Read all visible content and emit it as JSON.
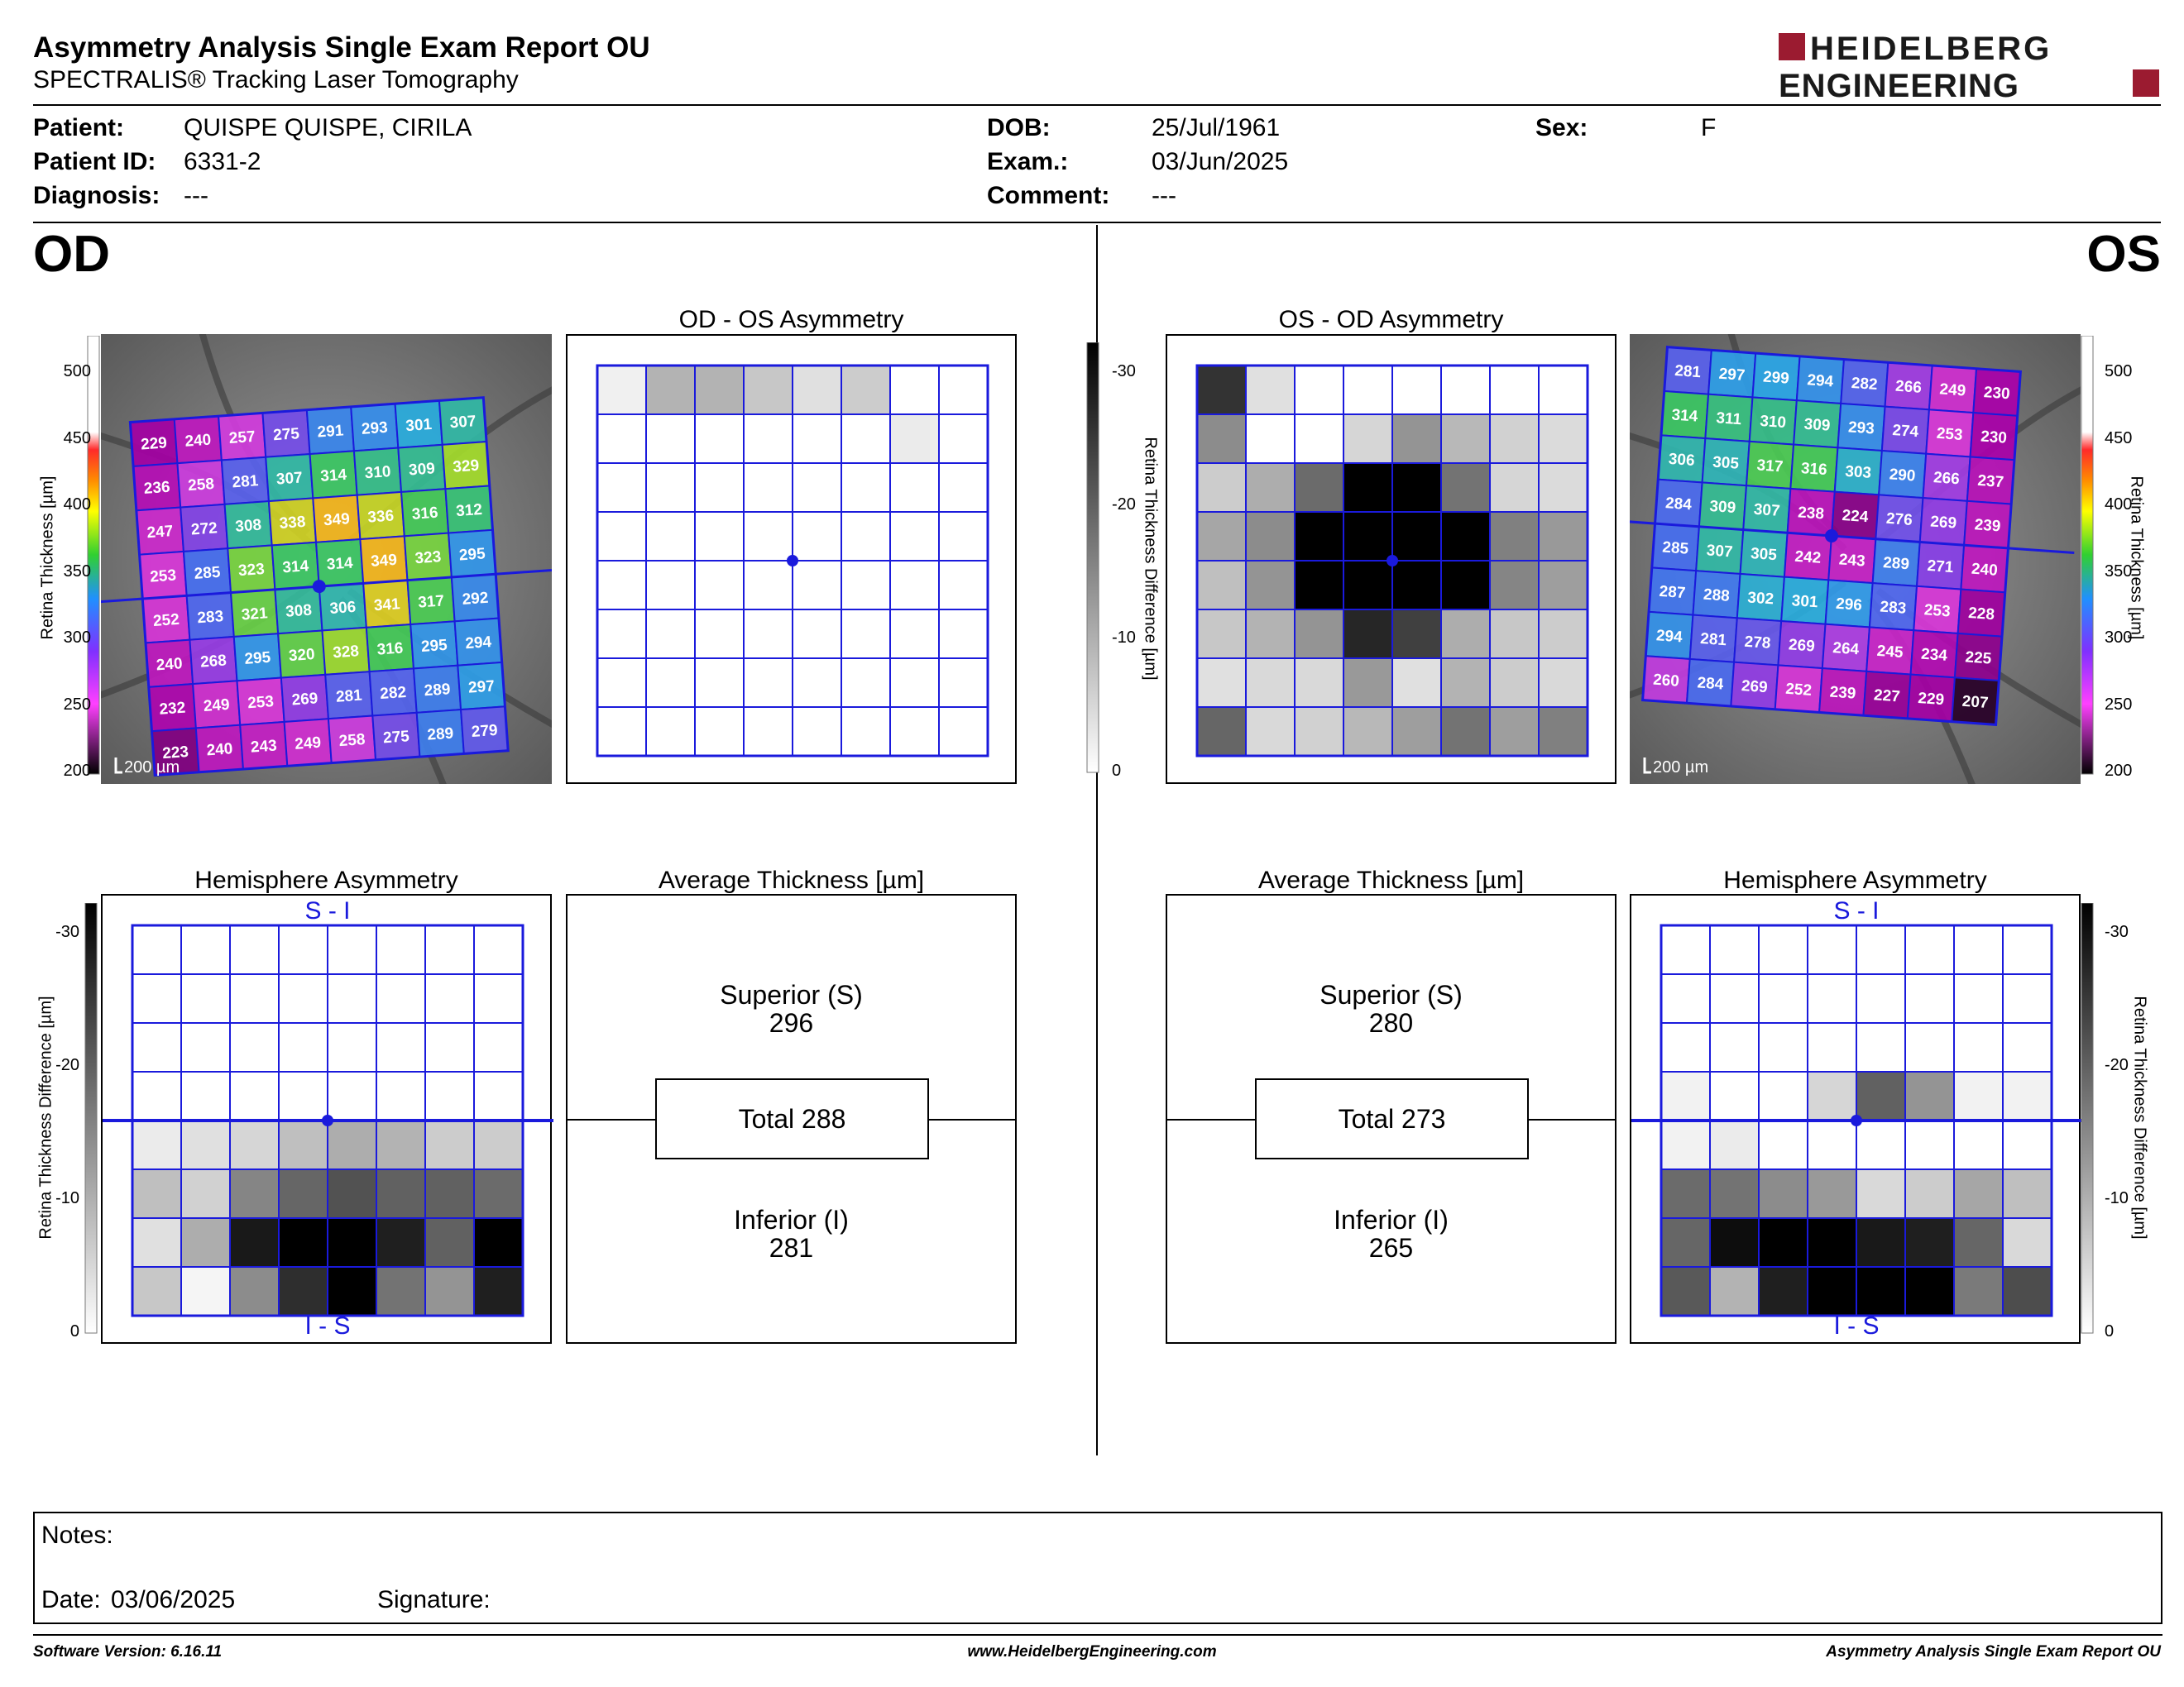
{
  "header": {
    "title": "Asymmetry Analysis Single Exam Report OU",
    "subtitle": "SPECTRALIS® Tracking Laser Tomography",
    "logo_line1": "HEIDELBERG",
    "logo_line2": "ENGINEERING"
  },
  "patient": {
    "patient_label": "Patient:",
    "patient": "QUISPE QUISPE, CIRILA",
    "patient_id_label": "Patient ID:",
    "patient_id": "6331-2",
    "diagnosis_label": "Diagnosis:",
    "diagnosis": "---",
    "dob_label": "DOB:",
    "dob": "25/Jul/1961",
    "exam_label": "Exam.:",
    "exam": "03/Jun/2025",
    "comment_label": "Comment:",
    "comment": "---",
    "sex_label": "Sex:",
    "sex": "F"
  },
  "eyes": {
    "left": "OD",
    "right": "OS"
  },
  "panel_titles": {
    "od_os": "OD - OS Asymmetry",
    "os_od": "OS - OD Asymmetry",
    "hemi": "Hemisphere Asymmetry",
    "avg": "Average Thickness [µm]"
  },
  "scales": {
    "thickness_label": "Retina Thickness [µm]",
    "thickness_ticks": [
      "500",
      "450",
      "400",
      "350",
      "300",
      "250",
      "200"
    ],
    "diff_label": "Retina Thickness Difference [µm]",
    "diff_ticks": [
      "-30",
      "-20",
      "-10",
      "0"
    ],
    "scale_bar": "200 µm"
  },
  "hemi_labels": {
    "top": "S - I",
    "bottom": "I - S"
  },
  "od": {
    "thickness_grid": [
      [
        "229",
        "240",
        "257",
        "275",
        "291",
        "293",
        "301",
        "307"
      ],
      [
        "236",
        "258",
        "281",
        "307",
        "314",
        "310",
        "309",
        "329"
      ],
      [
        "247",
        "272",
        "308",
        "338",
        "349",
        "336",
        "316",
        "312"
      ],
      [
        "253",
        "285",
        "323",
        "314",
        "314",
        "349",
        "323",
        "295"
      ],
      [
        "252",
        "283",
        "321",
        "308",
        "306",
        "341",
        "317",
        "292"
      ],
      [
        "240",
        "268",
        "295",
        "320",
        "328",
        "316",
        "295",
        "294"
      ],
      [
        "232",
        "249",
        "253",
        "269",
        "281",
        "282",
        "289",
        "297"
      ],
      [
        "223",
        "240",
        "243",
        "249",
        "258",
        "275",
        "289",
        "279"
      ]
    ],
    "asym_grid": [
      [
        0.06,
        0.3,
        0.3,
        0.22,
        0.12,
        0.2,
        0,
        0
      ],
      [
        0,
        0,
        0,
        0,
        0,
        0,
        0.08,
        0
      ],
      [
        0,
        0,
        0,
        0,
        0,
        0,
        0,
        0
      ],
      [
        0,
        0,
        0,
        0,
        0,
        0,
        0,
        0
      ],
      [
        0,
        0,
        0,
        0,
        0,
        0,
        0,
        0
      ],
      [
        0,
        0,
        0,
        0,
        0,
        0,
        0,
        0
      ],
      [
        0,
        0,
        0,
        0,
        0,
        0,
        0,
        0
      ],
      [
        0,
        0,
        0,
        0,
        0,
        0,
        0,
        0
      ]
    ],
    "hemi_grid": [
      [
        0,
        0,
        0,
        0,
        0,
        0,
        0,
        0
      ],
      [
        0,
        0,
        0,
        0,
        0,
        0,
        0,
        0
      ],
      [
        0,
        0,
        0,
        0,
        0,
        0,
        0,
        0
      ],
      [
        0,
        0,
        0,
        0,
        0,
        0,
        0,
        0
      ],
      [
        0.08,
        0.12,
        0.16,
        0.25,
        0.32,
        0.3,
        0.2,
        0.2
      ],
      [
        0.25,
        0.18,
        0.48,
        0.6,
        0.68,
        0.62,
        0.62,
        0.58
      ],
      [
        0.12,
        0.32,
        0.9,
        1,
        1,
        0.88,
        0.62,
        1
      ],
      [
        0.22,
        0.04,
        0.45,
        0.82,
        1,
        0.55,
        0.42,
        0.88
      ]
    ],
    "avg": {
      "superior_label": "Superior (S)",
      "superior": "296",
      "total": "Total 288",
      "inferior_label": "Inferior (I)",
      "inferior": "281"
    }
  },
  "os": {
    "thickness_grid": [
      [
        "281",
        "297",
        "299",
        "294",
        "282",
        "266",
        "249",
        "230"
      ],
      [
        "314",
        "311",
        "310",
        "309",
        "293",
        "274",
        "253",
        "230"
      ],
      [
        "306",
        "305",
        "317",
        "316",
        "303",
        "290",
        "266",
        "237"
      ],
      [
        "284",
        "309",
        "307",
        "238",
        "224",
        "276",
        "269",
        "239"
      ],
      [
        "285",
        "307",
        "305",
        "242",
        "243",
        "289",
        "271",
        "240"
      ],
      [
        "287",
        "288",
        "302",
        "301",
        "296",
        "283",
        "253",
        "228"
      ],
      [
        "294",
        "281",
        "278",
        "269",
        "264",
        "245",
        "234",
        "225"
      ],
      [
        "260",
        "284",
        "269",
        "252",
        "239",
        "227",
        "229",
        "207"
      ]
    ],
    "asym_grid": [
      [
        0.8,
        0.12,
        0,
        0,
        0,
        0,
        0,
        0
      ],
      [
        0.45,
        0,
        0,
        0.16,
        0.42,
        0.28,
        0.18,
        0.14
      ],
      [
        0.2,
        0.32,
        0.58,
        1,
        1,
        0.55,
        0.16,
        0.14
      ],
      [
        0.35,
        0.45,
        1,
        1,
        1,
        1,
        0.5,
        0.4
      ],
      [
        0.25,
        0.42,
        1,
        1,
        1,
        1,
        0.48,
        0.38
      ],
      [
        0.22,
        0.3,
        0.42,
        0.85,
        0.75,
        0.32,
        0.22,
        0.2
      ],
      [
        0.12,
        0.15,
        0.15,
        0.4,
        0.12,
        0.3,
        0.2,
        0.15
      ],
      [
        0.6,
        0.15,
        0.18,
        0.28,
        0.38,
        0.55,
        0.38,
        0.5
      ]
    ],
    "hemi_grid": [
      [
        0,
        0,
        0,
        0,
        0,
        0,
        0,
        0
      ],
      [
        0,
        0,
        0,
        0,
        0,
        0,
        0,
        0
      ],
      [
        0,
        0,
        0,
        0,
        0,
        0,
        0,
        0
      ],
      [
        0.05,
        0,
        0,
        0.16,
        0.62,
        0.42,
        0.05,
        0.05
      ],
      [
        0.05,
        0.08,
        0,
        0,
        0,
        0,
        0,
        0
      ],
      [
        0.58,
        0.55,
        0.45,
        0.4,
        0.15,
        0.2,
        0.35,
        0.25
      ],
      [
        0.6,
        0.95,
        1,
        1,
        0.9,
        0.88,
        0.6,
        0.15
      ],
      [
        0.65,
        0.3,
        0.88,
        1,
        1,
        1,
        0.52,
        0.7
      ]
    ],
    "avg": {
      "superior_label": "Superior (S)",
      "superior": "280",
      "total": "Total 273",
      "inferior_label": "Inferior (I)",
      "inferior": "265"
    }
  },
  "notes": {
    "notes_label": "Notes:",
    "date_label": "Date:",
    "date": "03/06/2025",
    "signature_label": "Signature:"
  },
  "footer": {
    "left": "Software Version: 6.16.11",
    "center": "www.HeidelbergEngineering.com",
    "right": "Asymmetry Analysis Single Exam Report OU"
  }
}
